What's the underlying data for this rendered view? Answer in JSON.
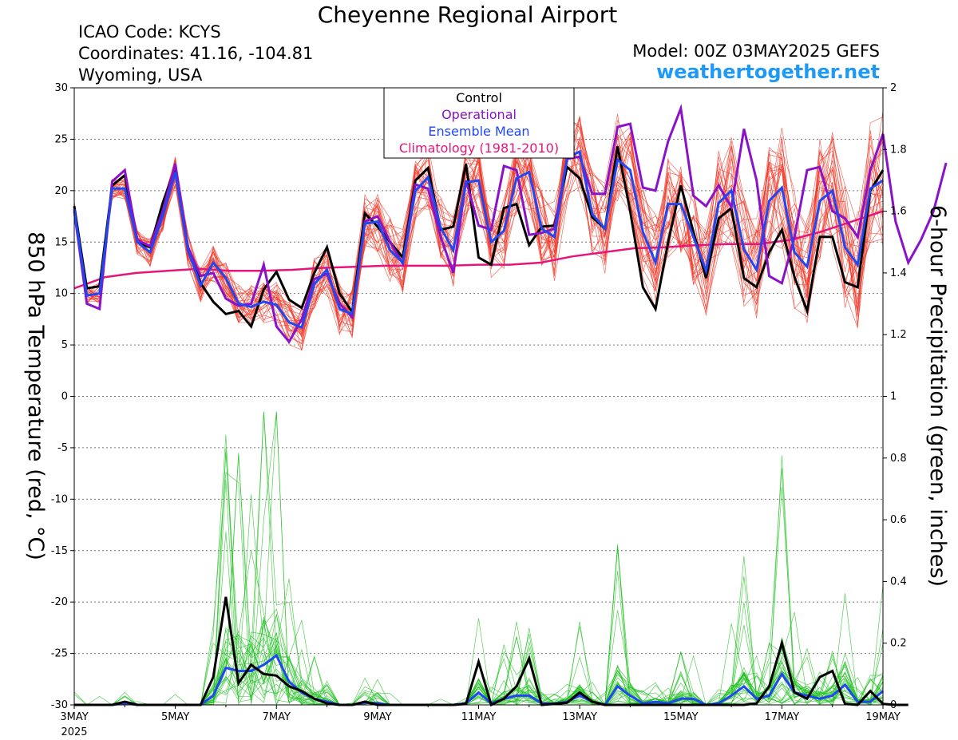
{
  "header": {
    "title": "Cheyenne Regional Airport",
    "icao": "ICAO Code: KCYS",
    "coordinates": "Coordinates: 41.16, -104.81",
    "region": "Wyoming, USA",
    "model": "Model: 00Z 03MAY2025 GEFS",
    "site": "weathertogether.net"
  },
  "chart_data": {
    "type": "line",
    "title": "Cheyenne Regional Airport",
    "ylabel_left": "850 hPa Temperature (red, °C)",
    "ylabel_right": "6-hour Precipitation (green, inches)",
    "x_range": [
      "3MAY",
      "19MAY"
    ],
    "x_ticks": [
      "3MAY",
      "5MAY",
      "7MAY",
      "9MAY",
      "11MAY",
      "13MAY",
      "15MAY",
      "17MAY",
      "19MAY"
    ],
    "x_tick_days": [
      0,
      2,
      4,
      6,
      8,
      10,
      12,
      14,
      16
    ],
    "x_year_label": "2025",
    "ylim_left": [
      -30,
      30
    ],
    "yticks_left": [
      30,
      25,
      20,
      15,
      10,
      5,
      0,
      -5,
      -10,
      -15,
      -20,
      -25,
      -30
    ],
    "ylim_right": [
      0,
      2
    ],
    "yticks_right": [
      "2",
      "1.8",
      "1.6",
      "1.4",
      "1.2",
      "1",
      "0.8",
      "0.6",
      "0.4",
      "0.2",
      "0"
    ],
    "grid": "horizontal dotted",
    "legend": {
      "position": "top-center",
      "entries": [
        {
          "label": "Control",
          "color": "#000000"
        },
        {
          "label": "Operational",
          "color": "#8a12c8"
        },
        {
          "label": "Ensemble Mean",
          "color": "#2147f2"
        },
        {
          "label": "Climatology (1981-2010)",
          "color": "#e6157a"
        }
      ]
    },
    "time_step_days": 0.25,
    "temperature": {
      "control": [
        18.5,
        10.5,
        10.7,
        20.5,
        21.5,
        15.0,
        14.5,
        18.8,
        22.3,
        14.5,
        11.0,
        9.2,
        8.0,
        8.3,
        6.8,
        10.4,
        12.1,
        9.4,
        8.6,
        12.0,
        14.5,
        10.0,
        8.2,
        17.8,
        16.5,
        15.0,
        13.5,
        21.0,
        22.2,
        16.2,
        16.5,
        22.6,
        13.5,
        12.8,
        18.3,
        18.7,
        14.7,
        16.5,
        16.6,
        22.3,
        21.2,
        17.4,
        16.3,
        24.3,
        18.0,
        10.6,
        8.5,
        15.0,
        20.5,
        16.0,
        11.5,
        17.3,
        18.3,
        11.5,
        10.6,
        14.0,
        16.2,
        11.6,
        8.3,
        15.5,
        15.5,
        11.1,
        10.6,
        20.0,
        22.0
      ],
      "operational": [
        18.0,
        9.0,
        8.5,
        20.9,
        22.0,
        15.2,
        14.6,
        18.0,
        22.6,
        14.5,
        11.7,
        12.0,
        9.5,
        8.8,
        9.0,
        12.8,
        6.8,
        5.3,
        7.5,
        11.4,
        11.9,
        9.0,
        7.7,
        17.0,
        17.5,
        15.0,
        12.9,
        20.6,
        20.2,
        15.5,
        12.0,
        21.0,
        16.6,
        16.2,
        22.4,
        22.0,
        15.7,
        15.9,
        16.3,
        23.1,
        23.3,
        19.7,
        19.7,
        26.2,
        26.5,
        20.3,
        20.0,
        24.8,
        28.0,
        19.5,
        18.5,
        20.5,
        18.4,
        26.0,
        21.0,
        11.7,
        11.0,
        15.5,
        22.0,
        22.3,
        18.0,
        17.3,
        15.5,
        22.0,
        25.5,
        17.0,
        13.0,
        15.2,
        18.0,
        22.7
      ],
      "ensemble_mean": [
        18.2,
        9.8,
        10.0,
        20.2,
        20.2,
        15.0,
        14.0,
        17.5,
        21.8,
        14.2,
        10.8,
        13.0,
        11.5,
        9.0,
        8.7,
        9.2,
        8.9,
        7.2,
        6.7,
        10.9,
        12.3,
        8.5,
        8.0,
        16.8,
        17.0,
        14.2,
        13.0,
        20.0,
        21.3,
        16.4,
        14.2,
        20.8,
        21.0,
        15.0,
        16.1,
        21.2,
        21.8,
        16.3,
        15.5,
        23.2,
        23.8,
        17.7,
        16.3,
        23.0,
        22.0,
        16.0,
        13.0,
        18.7,
        18.7,
        15.5,
        12.2,
        18.8,
        20.0,
        14.3,
        12.3,
        19.0,
        20.3,
        14.0,
        12.6,
        19.0,
        20.0,
        14.5,
        12.8,
        20.2,
        21.0
      ],
      "climatology": [
        10.5,
        11.6,
        12.0,
        12.2,
        12.4,
        12.2,
        12.2,
        12.3,
        12.5,
        12.6,
        12.7,
        12.7,
        12.7,
        12.8,
        12.8,
        13.0,
        13.6,
        14.0,
        14.4,
        14.5,
        14.7,
        14.8,
        14.8,
        15.2,
        16.0,
        17.0,
        18.0
      ],
      "climatology_step_days": 0.6154
    },
    "precipitation": {
      "control": [
        0,
        0,
        0,
        0,
        0.01,
        0,
        0,
        0,
        0,
        0,
        0,
        0.09,
        0.35,
        0.07,
        0.13,
        0.1,
        0.095,
        0.06,
        0.045,
        0.02,
        0.005,
        0,
        0,
        0.01,
        0,
        0,
        0,
        0,
        0,
        0,
        0,
        0.003,
        0.14,
        0,
        0.02,
        0.06,
        0.15,
        0,
        0.003,
        0.007,
        0.04,
        0.01,
        0,
        0,
        0,
        0,
        0,
        0,
        0,
        0,
        0,
        0,
        0,
        0,
        0.005,
        0.06,
        0.2,
        0.04,
        0.02,
        0.09,
        0.11,
        0.003,
        0,
        0.045,
        0.003,
        0,
        0
      ],
      "ensemble_mean": [
        0,
        0,
        0,
        0,
        0.005,
        0,
        0,
        0,
        0,
        0,
        0,
        0.03,
        0.12,
        0.11,
        0.11,
        0.13,
        0.16,
        0.075,
        0.04,
        0.02,
        0.01,
        0,
        0,
        0.007,
        0.005,
        0,
        0,
        0,
        0,
        0,
        0,
        0.005,
        0.04,
        0.005,
        0.02,
        0.03,
        0.03,
        0.005,
        0.004,
        0.01,
        0.03,
        0.01,
        0,
        0.06,
        0.03,
        0.005,
        0.01,
        0.005,
        0.02,
        0.02,
        0,
        0.005,
        0.03,
        0.06,
        0.02,
        0.03,
        0.1,
        0.04,
        0.03,
        0.02,
        0.03,
        0.065,
        0.01,
        0.01,
        0.045
      ]
    },
    "members": 30
  }
}
